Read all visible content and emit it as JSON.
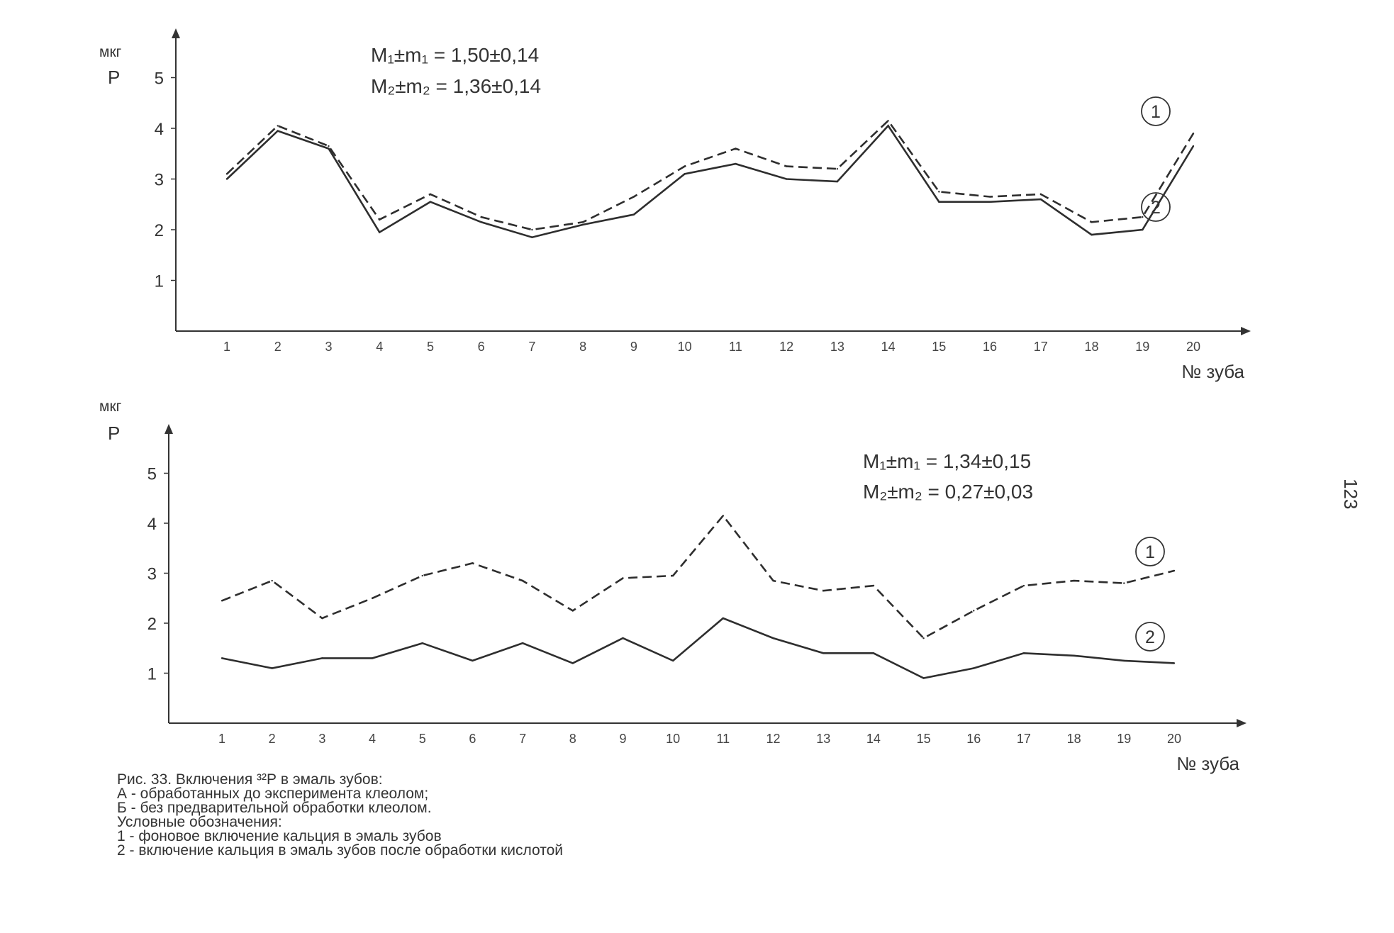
{
  "page_number": "123",
  "caption": {
    "title": "Рис. 33. Включения ³²Р в эмаль зубов:",
    "line_a": "А - обработанных до эксперимента клеолом;",
    "line_b": "Б - без предварительной обработки клеолом.",
    "legend_title": "Условные обозначения:",
    "legend_1": "1 - фоновое включение кальция в эмаль зубов",
    "legend_2": "2 - включение кальция в эмаль зубов после обработки кислотой"
  },
  "chart_data": [
    {
      "type": "line",
      "unit_label": "мкг",
      "ylabel": "Р",
      "xlabel": "№ зуба",
      "ylim": [
        0,
        5.5
      ],
      "yticks": [
        1,
        2,
        3,
        4,
        5
      ],
      "grid": false,
      "stats": [
        "M₁±m₁ = 1,50±0,14",
        "M₂±m₂ = 1,36±0,14"
      ],
      "categories": [
        "1",
        "2",
        "3",
        "4",
        "5",
        "6",
        "7",
        "8",
        "9",
        "10",
        "11",
        "12",
        "13",
        "14",
        "15",
        "16",
        "17",
        "18",
        "19",
        "20"
      ],
      "series": [
        {
          "name": "1",
          "style": "dashed",
          "values": [
            3.1,
            4.05,
            3.65,
            2.2,
            2.7,
            2.25,
            2.0,
            2.15,
            2.65,
            3.25,
            3.6,
            3.25,
            3.2,
            4.15,
            2.75,
            2.65,
            2.7,
            2.15,
            2.25,
            3.9
          ]
        },
        {
          "name": "2",
          "style": "solid",
          "values": [
            3.0,
            3.95,
            3.6,
            1.95,
            2.55,
            2.15,
            1.85,
            2.1,
            2.3,
            3.1,
            3.3,
            3.0,
            2.95,
            4.05,
            2.55,
            2.55,
            2.6,
            1.9,
            2.0,
            3.65
          ]
        }
      ]
    },
    {
      "type": "line",
      "unit_label": "мкг",
      "ylabel": "Р",
      "xlabel": "№ зуба",
      "ylim": [
        0,
        5.5
      ],
      "yticks": [
        1,
        2,
        3,
        4,
        5
      ],
      "grid": false,
      "stats": [
        "M₁±m₁ = 1,34±0,15",
        "M₂±m₂ = 0,27±0,03"
      ],
      "categories": [
        "1",
        "2",
        "3",
        "4",
        "5",
        "6",
        "7",
        "8",
        "9",
        "10",
        "11",
        "12",
        "13",
        "14",
        "15",
        "16",
        "17",
        "18",
        "19",
        "20"
      ],
      "series": [
        {
          "name": "1",
          "style": "dashed",
          "values": [
            2.45,
            2.85,
            2.1,
            2.5,
            2.95,
            3.2,
            2.85,
            2.25,
            2.9,
            2.95,
            4.15,
            2.85,
            2.65,
            2.75,
            1.7,
            2.25,
            2.75,
            2.85,
            2.8,
            3.05
          ]
        },
        {
          "name": "2",
          "style": "solid",
          "values": [
            1.3,
            1.1,
            1.3,
            1.3,
            1.6,
            1.25,
            1.6,
            1.2,
            1.7,
            1.25,
            2.1,
            1.7,
            1.4,
            1.4,
            0.9,
            1.1,
            1.4,
            1.35,
            1.25,
            1.2
          ]
        }
      ]
    }
  ]
}
